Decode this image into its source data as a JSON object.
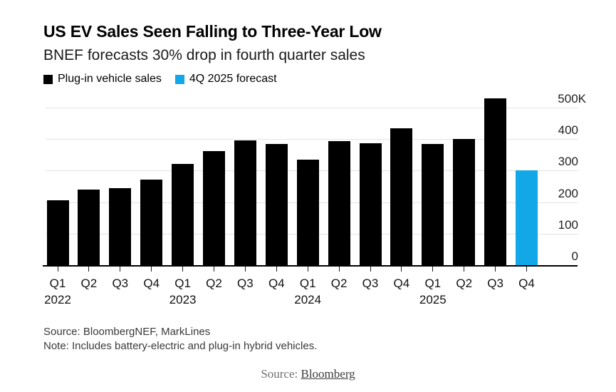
{
  "header": {
    "title": "US EV Sales Seen Falling to Three-Year Low",
    "subtitle": "BNEF forecasts 30% drop in fourth quarter sales"
  },
  "legend": {
    "items": [
      {
        "label": "Plug-in vehicle sales",
        "color": "#000000"
      },
      {
        "label": "4Q 2025 forecast",
        "color": "#12a8e8"
      }
    ]
  },
  "chart_data": {
    "type": "bar",
    "title": "US EV Sales Seen Falling to Three-Year Low",
    "subtitle": "BNEF forecasts 30% drop in fourth quarter sales",
    "unit": "thousand vehicles",
    "categories": [
      "Q1 2022",
      "Q2 2022",
      "Q3 2022",
      "Q4 2022",
      "Q1 2023",
      "Q2 2023",
      "Q3 2023",
      "Q4 2023",
      "Q1 2024",
      "Q2 2024",
      "Q3 2024",
      "Q4 2024",
      "Q1 2025",
      "Q2 2025",
      "Q3 2025",
      "Q4 2025"
    ],
    "values": [
      207,
      240,
      244,
      272,
      321,
      363,
      397,
      384,
      335,
      393,
      387,
      434,
      384,
      400,
      530,
      300
    ],
    "bar_series": [
      "actual",
      "actual",
      "actual",
      "actual",
      "actual",
      "actual",
      "actual",
      "actual",
      "actual",
      "actual",
      "actual",
      "actual",
      "actual",
      "actual",
      "actual",
      "forecast"
    ],
    "series": [
      {
        "name": "Plug-in vehicle sales",
        "color": "#000000"
      },
      {
        "name": "4Q 2025 forecast",
        "color": "#12a8e8"
      }
    ],
    "series_colors": {
      "actual": "#000000",
      "forecast": "#12a8e8"
    },
    "quarter_labels": [
      "Q1",
      "Q2",
      "Q3",
      "Q4",
      "Q1",
      "Q2",
      "Q3",
      "Q4",
      "Q1",
      "Q2",
      "Q3",
      "Q4",
      "Q1",
      "Q2",
      "Q3",
      "Q4"
    ],
    "year_labels": [
      {
        "label": "2022",
        "index": 0
      },
      {
        "label": "2023",
        "index": 4
      },
      {
        "label": "2024",
        "index": 8
      },
      {
        "label": "2025",
        "index": 12
      }
    ],
    "xlabel": "",
    "ylabel": "",
    "ylim": [
      0,
      500
    ],
    "yticks": [
      0,
      100,
      200,
      300,
      400,
      500
    ],
    "ytick_labels": [
      "0",
      "100",
      "200",
      "300",
      "400",
      "500K"
    ],
    "grid": "horizontal",
    "legend_position": "top",
    "ytick_side": "right"
  },
  "footnotes": {
    "source": "Source: BloombergNEF, MarkLines",
    "note": "Note: Includes battery-electric and plug-in hybrid vehicles."
  },
  "caption": {
    "prefix": "Source: ",
    "link_text": "Bloomberg"
  }
}
